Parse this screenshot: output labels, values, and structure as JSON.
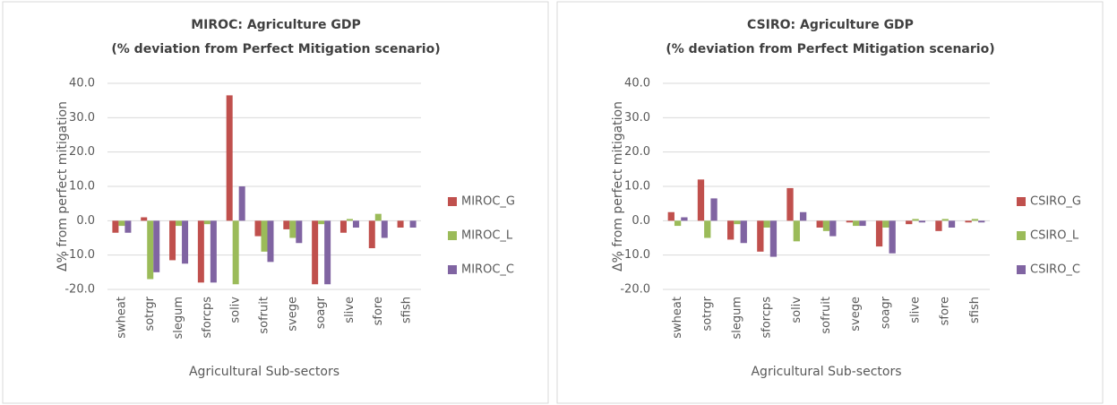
{
  "chart_data": [
    {
      "type": "bar",
      "title": "MIROC: Agriculture GDP",
      "subtitle": "(% deviation from Perfect Mitigation scenario)",
      "x_label": "Agricultural Sub-sectors",
      "y_label": "Δ% from perfect mitigation",
      "categories": [
        "swheat",
        "sotrgr",
        "slegum",
        "sforcps",
        "soliv",
        "sofruit",
        "svege",
        "soagr",
        "slive",
        "sfore",
        "sfish"
      ],
      "series": [
        {
          "name": "MIROC_G",
          "color": "#c0504d",
          "values": [
            -3.5,
            1.0,
            -11.5,
            -18,
            36.5,
            -4.5,
            -2.5,
            -18.5,
            -3.5,
            -8,
            -2
          ]
        },
        {
          "name": "MIROC_L",
          "color": "#9bbb59",
          "values": [
            -1.5,
            -17,
            -1.5,
            -1,
            -18.5,
            -9,
            -5,
            -1,
            0.5,
            2,
            0
          ]
        },
        {
          "name": "MIROC_C",
          "color": "#8064a2",
          "values": [
            -3.5,
            -15,
            -12.5,
            -18,
            10,
            -12,
            -6.5,
            -18.5,
            -2,
            -5,
            -2
          ]
        }
      ],
      "ylim": [
        -20,
        40
      ],
      "yticks": [
        {
          "value": -20,
          "label": "-20.0"
        },
        {
          "value": -10,
          "label": "-10.0"
        },
        {
          "value": 0,
          "label": "0.0"
        },
        {
          "value": 10,
          "label": "10.0"
        },
        {
          "value": 20,
          "label": "20.0"
        },
        {
          "value": 30,
          "label": "30.0"
        },
        {
          "value": 40,
          "label": "40.0"
        }
      ],
      "grid": true,
      "legend": "right"
    },
    {
      "type": "bar",
      "title": "CSIRO: Agriculture GDP",
      "subtitle": "(% deviation from Perfect Mitigation scenario)",
      "x_label": "Agricultural Sub-sectors",
      "y_label": "Δ% from perfect mitigation",
      "categories": [
        "swheat",
        "sotrgr",
        "slegum",
        "sforcps",
        "soliv",
        "sofruit",
        "svege",
        "soagr",
        "slive",
        "sfore",
        "sfish"
      ],
      "series": [
        {
          "name": "CSIRO_G",
          "color": "#c0504d",
          "values": [
            2.5,
            12,
            -5.5,
            -9,
            9.5,
            -2,
            -0.5,
            -7.5,
            -1,
            -3,
            -0.5
          ]
        },
        {
          "name": "CSIRO_L",
          "color": "#9bbb59",
          "values": [
            -1.5,
            -5,
            -1,
            -2,
            -6,
            -3,
            -1.5,
            -2,
            0.5,
            0.5,
            0.5
          ]
        },
        {
          "name": "CSIRO_C",
          "color": "#8064a2",
          "values": [
            1.0,
            6.5,
            -6.5,
            -10.5,
            2.5,
            -4.5,
            -1.5,
            -9.5,
            -0.5,
            -2,
            -0.5
          ]
        }
      ],
      "ylim": [
        -20,
        40
      ],
      "yticks": [
        {
          "value": -20,
          "label": "-20.0"
        },
        {
          "value": -10,
          "label": "-10.0"
        },
        {
          "value": 0,
          "label": "0.0"
        },
        {
          "value": 10,
          "label": "10.0"
        },
        {
          "value": 20,
          "label": "20.0"
        },
        {
          "value": 30,
          "label": "30.0"
        },
        {
          "value": 40,
          "label": "40.0"
        }
      ],
      "grid": true,
      "legend": "right"
    }
  ]
}
